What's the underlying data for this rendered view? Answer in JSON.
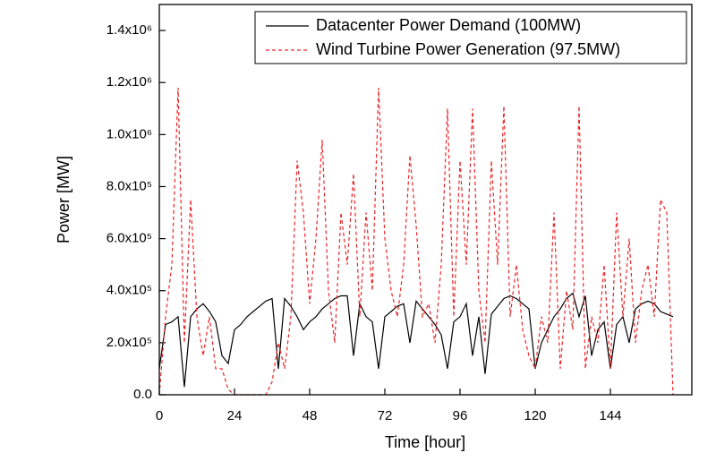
{
  "chart_data": {
    "type": "line",
    "xlabel": "Time [hour]",
    "ylabel": "Power [MW]",
    "x": [
      0,
      2,
      4,
      6,
      8,
      10,
      12,
      14,
      16,
      18,
      20,
      22,
      24,
      26,
      28,
      30,
      32,
      34,
      36,
      38,
      40,
      42,
      44,
      46,
      48,
      50,
      52,
      54,
      56,
      58,
      60,
      62,
      64,
      66,
      68,
      70,
      72,
      74,
      76,
      78,
      80,
      82,
      84,
      86,
      88,
      90,
      92,
      94,
      96,
      98,
      100,
      102,
      104,
      106,
      108,
      110,
      112,
      114,
      116,
      118,
      120,
      122,
      124,
      126,
      128,
      130,
      132,
      134,
      136,
      138,
      140,
      142,
      144,
      146,
      148,
      150,
      152,
      154,
      156,
      158,
      160,
      162,
      164
    ],
    "series": [
      {
        "name": "Datacenter Power Demand (100MW)",
        "color": "#000000",
        "line_style": "solid",
        "values": [
          100000,
          270000,
          280000,
          300000,
          30000,
          300000,
          330000,
          350000,
          320000,
          280000,
          150000,
          120000,
          250000,
          270000,
          300000,
          320000,
          340000,
          360000,
          370000,
          100000,
          370000,
          340000,
          300000,
          250000,
          280000,
          300000,
          330000,
          350000,
          370000,
          380000,
          380000,
          150000,
          350000,
          300000,
          280000,
          100000,
          300000,
          320000,
          340000,
          350000,
          200000,
          360000,
          330000,
          300000,
          270000,
          230000,
          100000,
          280000,
          300000,
          350000,
          150000,
          300000,
          80000,
          310000,
          340000,
          370000,
          380000,
          370000,
          350000,
          330000,
          100000,
          200000,
          250000,
          300000,
          330000,
          370000,
          390000,
          300000,
          380000,
          150000,
          250000,
          280000,
          100000,
          270000,
          300000,
          200000,
          330000,
          350000,
          360000,
          350000,
          320000,
          310000,
          300000
        ]
      },
      {
        "name": "Wind Turbine Power Generation (97.5MW)",
        "color": "#e8262a",
        "line_style": "dashed",
        "values": [
          0,
          300000,
          500000,
          1180000,
          200000,
          750000,
          300000,
          150000,
          300000,
          100000,
          100000,
          20000,
          0,
          0,
          0,
          0,
          0,
          0,
          50000,
          200000,
          100000,
          300000,
          900000,
          700000,
          350000,
          600000,
          980000,
          400000,
          200000,
          700000,
          500000,
          850000,
          300000,
          700000,
          400000,
          1180000,
          600000,
          400000,
          300000,
          500000,
          920000,
          650000,
          300000,
          350000,
          200000,
          500000,
          1100000,
          300000,
          900000,
          500000,
          1100000,
          400000,
          200000,
          900000,
          500000,
          1110000,
          300000,
          500000,
          250000,
          150000,
          100000,
          300000,
          200000,
          700000,
          100000,
          400000,
          250000,
          1110000,
          100000,
          300000,
          200000,
          500000,
          100000,
          700000,
          300000,
          600000,
          200000,
          400000,
          500000,
          300000,
          750000,
          700000,
          0
        ]
      }
    ],
    "xlim": [
      0,
      170
    ],
    "xticks": [
      0,
      24,
      48,
      72,
      96,
      120,
      144
    ],
    "ylim": [
      0,
      1500000
    ],
    "yticks": [
      {
        "value": 0,
        "label": "0.0"
      },
      {
        "value": 200000,
        "label": "2.0x10⁵"
      },
      {
        "value": 400000,
        "label": "4.0x10⁵"
      },
      {
        "value": 600000,
        "label": "6.0x10⁵"
      },
      {
        "value": 800000,
        "label": "8.0x10⁵"
      },
      {
        "value": 1000000,
        "label": "1.0x10⁶"
      },
      {
        "value": 1200000,
        "label": "1.2x10⁶"
      },
      {
        "value": 1400000,
        "label": "1.4x10⁶"
      }
    ],
    "legend": "top-right",
    "grid": false
  }
}
